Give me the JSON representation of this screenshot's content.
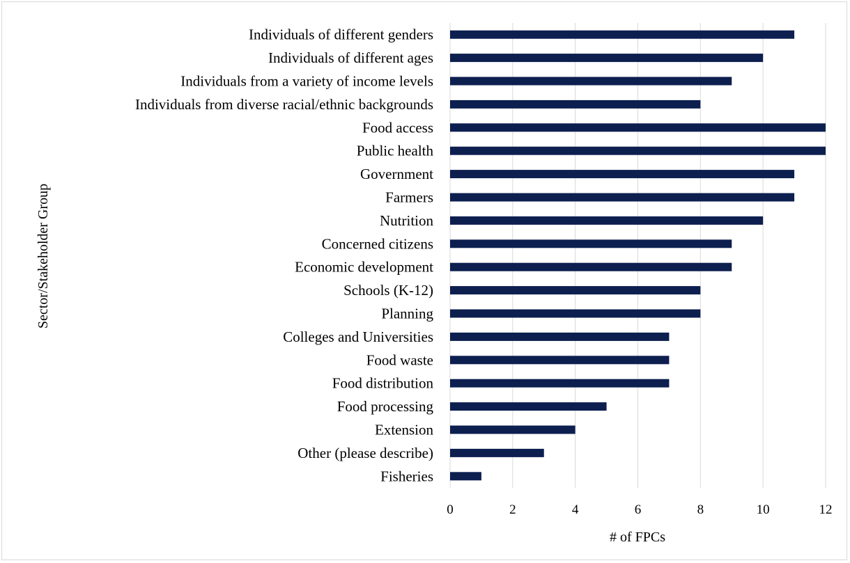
{
  "chart_data": {
    "type": "bar",
    "orientation": "horizontal",
    "title": "",
    "xlabel": "# of FPCs",
    "ylabel": "Sector/Stakeholder Group",
    "xlim": [
      0,
      12
    ],
    "xticks": [
      "0",
      "2",
      "4",
      "6",
      "8",
      "10",
      "12"
    ],
    "grid": "vertical",
    "legend": "none",
    "bar_color": "#0d1f4f",
    "grid_color": "#d9d9d9",
    "categories": [
      "Individuals of different genders",
      "Individuals of different ages",
      "Individuals from a variety of income levels",
      "Individuals from diverse racial/ethnic backgrounds",
      "Food access",
      "Public health",
      "Government",
      "Farmers",
      "Nutrition",
      "Concerned citizens",
      "Economic development",
      "Schools (K-12)",
      "Planning",
      "Colleges and Universities",
      "Food waste",
      "Food distribution",
      "Food processing",
      "Extension",
      "Other (please describe)",
      "Fisheries"
    ],
    "values": [
      11,
      10,
      9,
      8,
      12,
      12,
      11,
      11,
      10,
      9,
      9,
      8,
      8,
      7,
      7,
      7,
      5,
      4,
      3,
      1
    ]
  }
}
